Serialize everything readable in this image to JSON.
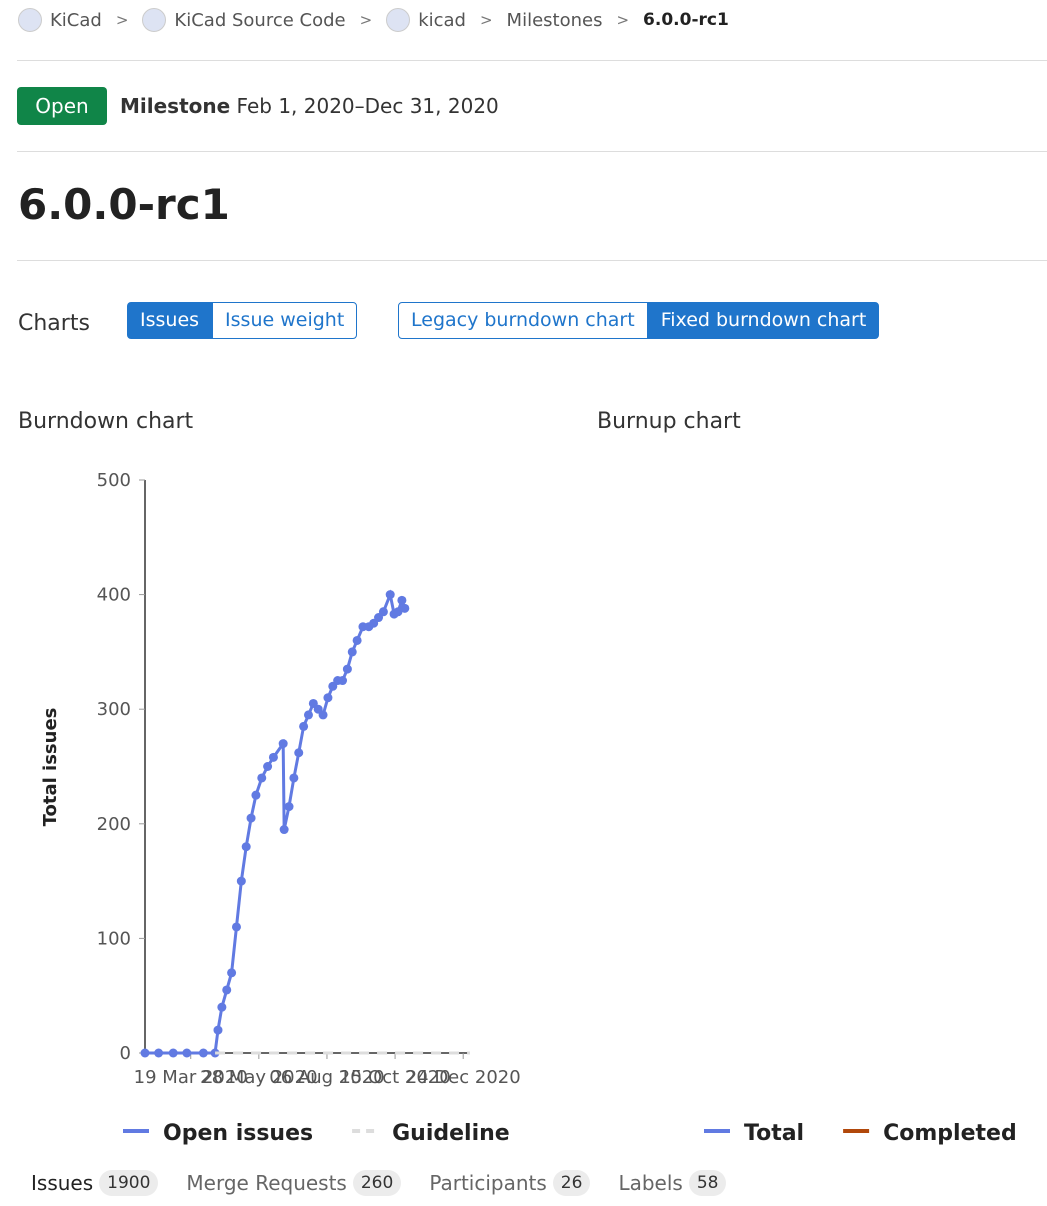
{
  "breadcrumbs": [
    "KiCad",
    "KiCad Source Code",
    "kicad",
    "Milestones",
    "6.0.0-rc1"
  ],
  "header": {
    "status": "Open",
    "label": "Milestone",
    "dates": "Feb 1, 2020–Dec 31, 2020"
  },
  "title": "6.0.0-rc1",
  "charts_toolbar": {
    "label": "Charts",
    "metric_buttons": [
      "Issues",
      "Issue weight"
    ],
    "chart_buttons": [
      "Legacy burndown chart",
      "Fixed burndown chart"
    ]
  },
  "chart_data": [
    {
      "type": "line",
      "title": "Burndown chart",
      "y_label": "Total issues",
      "x": [
        "2020-02-01",
        "2020-02-15",
        "2020-03-01",
        "2020-03-15",
        "2020-04-01",
        "2020-04-13",
        "2020-04-16",
        "2020-04-20",
        "2020-04-25",
        "2020-04-30",
        "2020-05-05",
        "2020-05-10",
        "2020-05-15",
        "2020-05-20",
        "2020-05-25",
        "2020-05-31",
        "2020-06-06",
        "2020-06-12",
        "2020-06-22",
        "2020-06-23",
        "2020-06-28",
        "2020-07-03",
        "2020-07-08",
        "2020-07-13",
        "2020-07-18",
        "2020-07-23",
        "2020-07-28",
        "2020-08-02",
        "2020-08-07",
        "2020-08-12",
        "2020-08-17",
        "2020-08-22",
        "2020-08-27",
        "2020-09-01",
        "2020-09-06",
        "2020-09-12",
        "2020-09-18",
        "2020-09-23",
        "2020-09-28",
        "2020-10-03",
        "2020-10-10",
        "2020-10-14",
        "2020-10-18",
        "2020-10-22",
        "2020-10-25"
      ],
      "xlim": [
        "2020-02-01",
        "2020-12-31"
      ],
      "xticks": [
        {
          "value": "2020-03-19",
          "label": "19 Mar 2020"
        },
        {
          "value": "2020-05-28",
          "label": "28 May 2020"
        },
        {
          "value": "2020-08-06",
          "label": "06 Aug 2020"
        },
        {
          "value": "2020-10-15",
          "label": "15 Oct 2020"
        },
        {
          "value": "2020-12-24",
          "label": "24 Dec 2020"
        }
      ],
      "ylim": [
        0,
        500
      ],
      "yticks": [
        0,
        100,
        200,
        300,
        400,
        500
      ],
      "series": [
        {
          "name": "Open issues",
          "color": "#617ae2",
          "values": [
            0,
            0,
            0,
            0,
            0,
            0,
            20,
            40,
            55,
            70,
            110,
            150,
            180,
            205,
            225,
            240,
            250,
            258,
            270,
            195,
            215,
            240,
            262,
            285,
            295,
            305,
            300,
            295,
            310,
            320,
            325,
            325,
            335,
            350,
            360,
            372,
            372,
            375,
            380,
            385,
            400,
            383,
            385,
            395,
            388
          ]
        },
        {
          "name": "Guideline",
          "color": "#dddddd",
          "dashed": true,
          "x": [
            "2020-04-13",
            "2020-12-31"
          ],
          "values": [
            0,
            0
          ]
        }
      ]
    },
    {
      "type": "line",
      "title": "Burnup chart",
      "series": [
        {
          "name": "Total",
          "color": "#617ae2",
          "values": []
        },
        {
          "name": "Completed",
          "color": "#b1480b",
          "values": []
        }
      ]
    }
  ],
  "tabs": [
    {
      "label": "Issues",
      "count": 1900
    },
    {
      "label": "Merge Requests",
      "count": 260
    },
    {
      "label": "Participants",
      "count": 26
    },
    {
      "label": "Labels",
      "count": 58
    }
  ]
}
